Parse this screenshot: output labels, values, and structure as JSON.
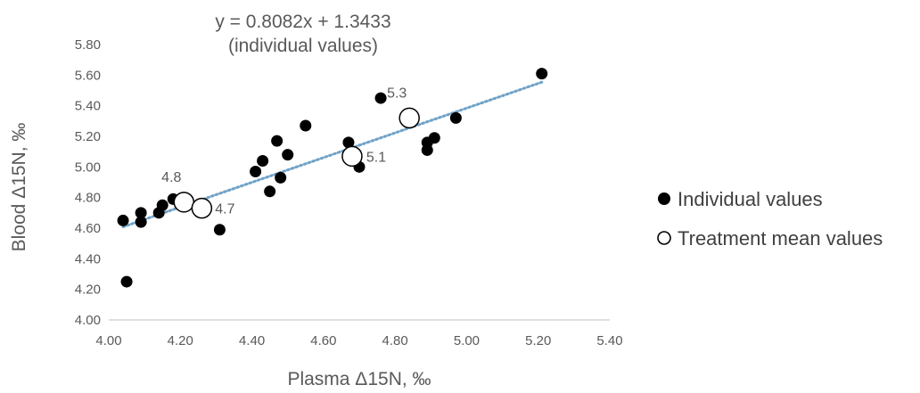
{
  "chart_data": {
    "type": "scatter",
    "title": "y = 0.8082x + 1.3433",
    "subtitle": "(individual values)",
    "xlabel": "Plasma Δ15N, ‰",
    "ylabel": "Blood Δ15N, ‰",
    "xlim": [
      4.0,
      5.4
    ],
    "ylim": [
      4.0,
      5.8
    ],
    "x_ticks": [
      "4.00",
      "4.20",
      "4.40",
      "4.60",
      "4.80",
      "5.00",
      "5.20",
      "5.40"
    ],
    "y_ticks": [
      "4.00",
      "4.20",
      "4.40",
      "4.60",
      "4.80",
      "5.00",
      "5.20",
      "5.40",
      "5.60",
      "5.80"
    ],
    "grid": false,
    "legend_position": "right",
    "series": [
      {
        "name": "Individual values",
        "marker": "filled-circle",
        "color": "#000000",
        "points": [
          {
            "x": 4.04,
            "y": 4.65
          },
          {
            "x": 4.05,
            "y": 4.25
          },
          {
            "x": 4.09,
            "y": 4.64
          },
          {
            "x": 4.09,
            "y": 4.7
          },
          {
            "x": 4.14,
            "y": 4.7
          },
          {
            "x": 4.15,
            "y": 4.75
          },
          {
            "x": 4.18,
            "y": 4.79
          },
          {
            "x": 4.31,
            "y": 4.59
          },
          {
            "x": 4.41,
            "y": 4.97
          },
          {
            "x": 4.43,
            "y": 5.04
          },
          {
            "x": 4.45,
            "y": 4.84
          },
          {
            "x": 4.47,
            "y": 5.17
          },
          {
            "x": 4.48,
            "y": 4.93
          },
          {
            "x": 4.5,
            "y": 5.08
          },
          {
            "x": 4.55,
            "y": 5.27
          },
          {
            "x": 4.67,
            "y": 5.16
          },
          {
            "x": 4.7,
            "y": 5.0
          },
          {
            "x": 4.76,
            "y": 5.45
          },
          {
            "x": 4.89,
            "y": 5.16
          },
          {
            "x": 4.89,
            "y": 5.11
          },
          {
            "x": 4.91,
            "y": 5.19
          },
          {
            "x": 4.97,
            "y": 5.32
          },
          {
            "x": 5.21,
            "y": 5.61
          }
        ]
      },
      {
        "name": "Treatment mean values",
        "marker": "open-circle",
        "color": "#000000",
        "points": [
          {
            "x": 4.21,
            "y": 4.77,
            "label": "4.8"
          },
          {
            "x": 4.26,
            "y": 4.73,
            "label": "4.7"
          },
          {
            "x": 4.68,
            "y": 5.07,
            "label": "5.1"
          },
          {
            "x": 4.84,
            "y": 5.32,
            "label": "5.3"
          }
        ]
      }
    ],
    "trendline": {
      "slope": 0.8082,
      "intercept": 1.3433,
      "x_range": [
        4.04,
        5.21
      ],
      "style": "dotted",
      "color": "#6fa2c8"
    }
  }
}
